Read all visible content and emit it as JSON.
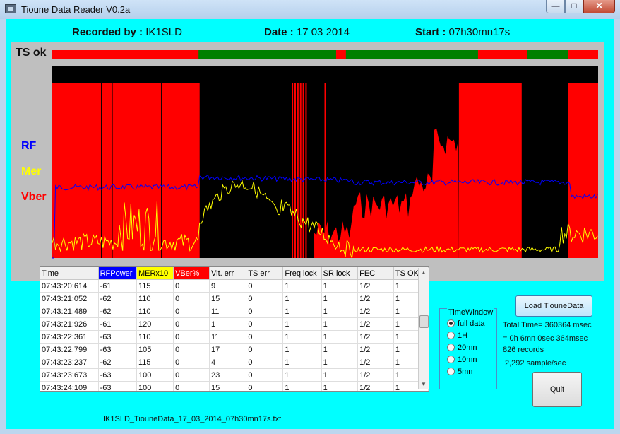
{
  "window": {
    "title": "Tioune Data Reader V0.2a"
  },
  "header": {
    "recorded_label": "Recorded by :",
    "recorded_value": "IK1SLD",
    "date_label": "Date :",
    "date_value": "17 03 2014",
    "start_label": "Start :",
    "start_value": "07h30mn17s"
  },
  "plot": {
    "ts_label": "TS ok",
    "legend": {
      "rf": "RF",
      "mer": "Mer",
      "vber": "Vber"
    },
    "colors": {
      "rf": "#0000ff",
      "mer": "#ffff00",
      "vber": "#ff0000",
      "ts_ok": "#008000",
      "ts_bad": "#ff0000",
      "background": "#000000"
    }
  },
  "grid": {
    "columns": [
      "Time",
      "RFPower",
      "MERx10",
      "VBer%",
      "Vit. err",
      "TS err",
      "Freq lock",
      "SR lock",
      "FEC",
      "TS OK"
    ],
    "header_colors": {
      "RFPower": "#0000ff",
      "MERx10": "#ffff00",
      "VBer%": "#ff0000"
    },
    "rows": [
      [
        "07:43:20:614",
        "-61",
        "115",
        "0",
        "9",
        "0",
        "1",
        "1",
        "1/2",
        "1"
      ],
      [
        "07:43:21:052",
        "-62",
        "110",
        "0",
        "15",
        "0",
        "1",
        "1",
        "1/2",
        "1"
      ],
      [
        "07:43:21:489",
        "-62",
        "110",
        "0",
        "11",
        "0",
        "1",
        "1",
        "1/2",
        "1"
      ],
      [
        "07:43:21:926",
        "-61",
        "120",
        "0",
        "1",
        "0",
        "1",
        "1",
        "1/2",
        "1"
      ],
      [
        "07:43:22:361",
        "-63",
        "110",
        "0",
        "11",
        "0",
        "1",
        "1",
        "1/2",
        "1"
      ],
      [
        "07:43:22:799",
        "-63",
        "105",
        "0",
        "17",
        "0",
        "1",
        "1",
        "1/2",
        "1"
      ],
      [
        "07:43:23:237",
        "-62",
        "115",
        "0",
        "4",
        "0",
        "1",
        "1",
        "1/2",
        "1"
      ],
      [
        "07:43:23:673",
        "-63",
        "100",
        "0",
        "23",
        "0",
        "1",
        "1",
        "1/2",
        "1"
      ],
      [
        "07:43:24:109",
        "-63",
        "100",
        "0",
        "15",
        "0",
        "1",
        "1",
        "1/2",
        "1"
      ]
    ]
  },
  "file_name": "IK1SLD_TiouneData_17_03_2014_07h30mn17s.txt",
  "time_window": {
    "label": "TimeWindow",
    "options": [
      "full data",
      "1H",
      "20mn",
      "10mn",
      "5mn"
    ],
    "selected": "full data"
  },
  "load_button": "Load TiouneData",
  "quit_button": "Quit",
  "info": {
    "total_time": "Total Time= 360364 msec",
    "duration": "= 0h 6mn 0sec 364msec",
    "records": "826 records",
    "rate": "2,292 sample/sec"
  }
}
